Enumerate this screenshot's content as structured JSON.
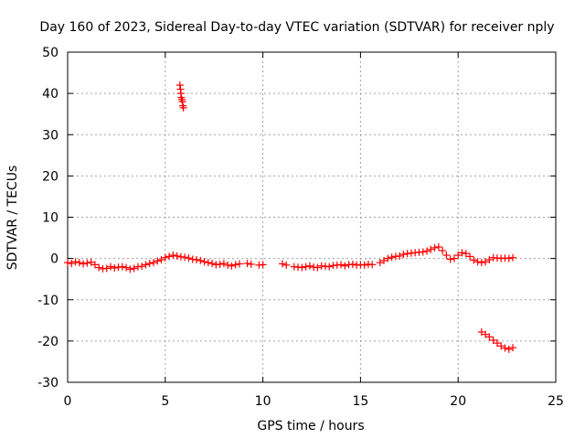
{
  "chart_data": {
    "type": "scatter",
    "title": "Day 160 of 2023, Sidereal Day-to-day VTEC variation (SDTVAR) for receiver nply",
    "xlabel": "GPS time / hours",
    "ylabel": "SDTVAR / TECUs",
    "xlim": [
      0,
      25
    ],
    "ylim": [
      -30,
      50
    ],
    "xticks": [
      0,
      5,
      10,
      15,
      20,
      25
    ],
    "yticks": [
      -30,
      -20,
      -10,
      0,
      10,
      20,
      30,
      40,
      50
    ],
    "grid": true,
    "marker": "+",
    "color": "#ff0000",
    "series": [
      {
        "name": "SDTVAR",
        "x": [
          0.0,
          0.2,
          0.4,
          0.6,
          0.8,
          1.0,
          1.2,
          1.4,
          1.6,
          1.8,
          2.0,
          2.2,
          2.4,
          2.6,
          2.8,
          3.0,
          3.2,
          3.4,
          3.6,
          3.8,
          4.0,
          4.2,
          4.4,
          4.6,
          4.8,
          5.0,
          5.2,
          5.4,
          5.6,
          5.8,
          6.0,
          6.2,
          6.4,
          6.6,
          6.8,
          7.0,
          7.2,
          7.4,
          7.6,
          7.8,
          8.0,
          8.2,
          8.4,
          8.6,
          8.8,
          9.2,
          9.4,
          9.8,
          10.0,
          11.0,
          11.2,
          11.6,
          11.8,
          12.0,
          12.2,
          12.4,
          12.6,
          12.8,
          13.0,
          13.2,
          13.4,
          13.6,
          13.8,
          14.0,
          14.2,
          14.4,
          14.6,
          14.8,
          15.0,
          15.2,
          15.4,
          15.6,
          16.0,
          16.2,
          16.4,
          16.6,
          16.8,
          17.0,
          17.2,
          17.4,
          17.6,
          17.8,
          18.0,
          18.2,
          18.4,
          18.6,
          18.8,
          19.0,
          19.2,
          19.4,
          19.6,
          19.8,
          20.0,
          20.2,
          20.4,
          20.6,
          20.8,
          21.0,
          21.2,
          21.4,
          21.6,
          21.8,
          22.0,
          22.2,
          22.4,
          22.6,
          22.8,
          5.75,
          5.78,
          5.8,
          5.82,
          5.85,
          5.88,
          5.9,
          5.93,
          21.2,
          21.4,
          21.6,
          21.8,
          22.0,
          22.2,
          22.4,
          22.6,
          22.8
        ],
        "y": [
          -1.0,
          -1.2,
          -0.8,
          -1.0,
          -1.3,
          -1.1,
          -0.9,
          -1.5,
          -2.2,
          -2.5,
          -2.4,
          -2.0,
          -2.3,
          -2.1,
          -2.0,
          -2.2,
          -2.6,
          -2.4,
          -2.0,
          -1.9,
          -1.5,
          -1.2,
          -1.0,
          -0.6,
          -0.3,
          0.2,
          0.5,
          0.8,
          0.6,
          0.4,
          0.3,
          0.1,
          -0.2,
          -0.3,
          -0.5,
          -0.8,
          -1.0,
          -1.2,
          -1.5,
          -1.4,
          -1.2,
          -1.6,
          -1.8,
          -1.5,
          -1.3,
          -1.2,
          -1.4,
          -1.6,
          -1.5,
          -1.3,
          -1.6,
          -2.0,
          -2.1,
          -2.2,
          -2.0,
          -1.8,
          -2.1,
          -2.2,
          -1.8,
          -1.9,
          -2.0,
          -1.7,
          -1.6,
          -1.5,
          -1.8,
          -1.5,
          -1.4,
          -1.6,
          -1.5,
          -1.6,
          -1.4,
          -1.5,
          -1.0,
          -0.5,
          0.0,
          0.3,
          0.5,
          0.6,
          1.0,
          1.2,
          1.3,
          1.4,
          1.5,
          1.6,
          1.8,
          2.2,
          2.6,
          2.8,
          1.9,
          0.8,
          -0.2,
          0.0,
          0.8,
          1.4,
          1.2,
          0.5,
          -0.4,
          -0.8,
          -1.0,
          -0.8,
          -0.3,
          0.2,
          0.1,
          0.0,
          0.1,
          0.0,
          0.2,
          42.0,
          41.0,
          40.0,
          39.0,
          38.5,
          38.0,
          37.0,
          36.5,
          -17.8,
          -18.4,
          -19.0,
          -19.8,
          -20.5,
          -21.2,
          -21.7,
          -22.0,
          -21.6
        ]
      }
    ]
  }
}
